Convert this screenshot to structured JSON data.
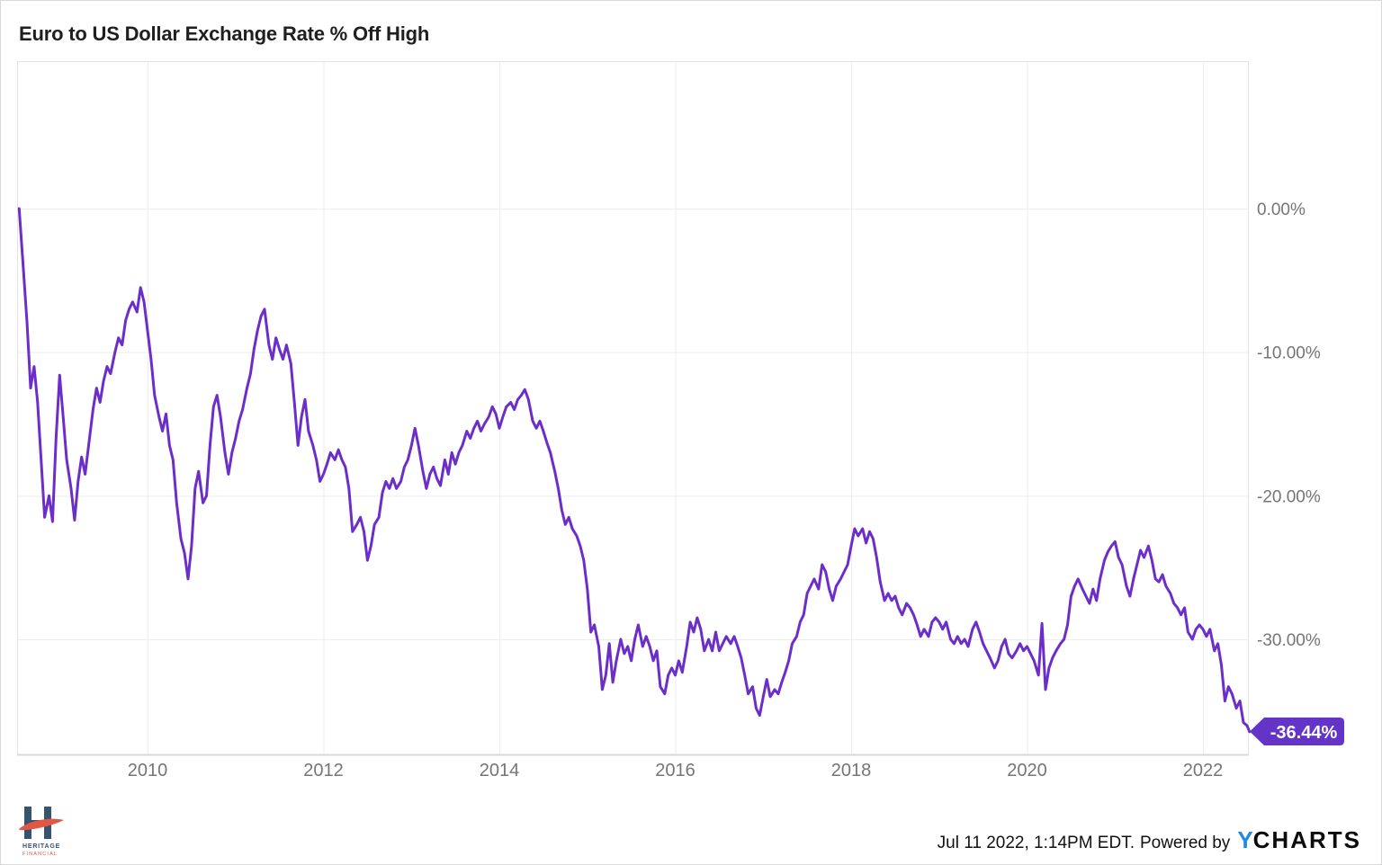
{
  "title": "Euro to US Dollar Exchange Rate % Off High",
  "badge": {
    "label": "-36.44%"
  },
  "footer": {
    "timestamp": "Jul 11 2022, 1:14PM EDT.",
    "powered_by": "Powered by",
    "ycharts_y": "Y",
    "ycharts_rest": "CHARTS"
  },
  "logo": {
    "line1": "HERITAGE",
    "line2": "FINANCIAL"
  },
  "colors": {
    "line": "#6C2EC8",
    "badge": "#6434C8",
    "grid": "#EDEDED",
    "plot_border": "#E3E3E3",
    "axis_line": "#D8D8D8",
    "axis_text": "#757575",
    "title_text": "#1F1F1F",
    "ycharts_blue": "#1E8AE8",
    "logo_navy": "#36536F",
    "logo_red": "#E25744"
  },
  "chart_data": {
    "type": "line",
    "title": "Euro to US Dollar Exchange Rate % Off High",
    "series_name": "Euro to US Dollar Exchange Rate % Off High",
    "xlabel": "",
    "ylabel": "",
    "y_axis_side": "right",
    "grid": true,
    "legend": "none",
    "x_range": [
      2008.52,
      2022.55
    ],
    "y_range": [
      -38.5,
      10.3
    ],
    "x_ticks": [
      2010,
      2012,
      2014,
      2016,
      2018,
      2020,
      2022
    ],
    "y_ticks": [
      {
        "label": "0.00%",
        "value": 0
      },
      {
        "label": "-10.00%",
        "value": -10
      },
      {
        "label": "-20.00%",
        "value": -20
      },
      {
        "label": "-30.00%",
        "value": -30
      }
    ],
    "last_value": -36.44,
    "last_value_label": "-36.44%",
    "points": [
      [
        2008.54,
        0
      ],
      [
        2008.58,
        -3.5
      ],
      [
        2008.63,
        -8
      ],
      [
        2008.67,
        -12.5
      ],
      [
        2008.71,
        -11
      ],
      [
        2008.75,
        -13.5
      ],
      [
        2008.79,
        -17.5
      ],
      [
        2008.83,
        -21.5
      ],
      [
        2008.88,
        -20
      ],
      [
        2008.92,
        -21.8
      ],
      [
        2008.96,
        -16
      ],
      [
        2009,
        -11.6
      ],
      [
        2009.04,
        -14.5
      ],
      [
        2009.08,
        -17.5
      ],
      [
        2009.13,
        -19.5
      ],
      [
        2009.17,
        -21.7
      ],
      [
        2009.21,
        -19
      ],
      [
        2009.25,
        -17.3
      ],
      [
        2009.29,
        -18.5
      ],
      [
        2009.33,
        -16.5
      ],
      [
        2009.38,
        -14
      ],
      [
        2009.42,
        -12.5
      ],
      [
        2009.46,
        -13.5
      ],
      [
        2009.5,
        -12
      ],
      [
        2009.54,
        -11
      ],
      [
        2009.58,
        -11.5
      ],
      [
        2009.63,
        -10
      ],
      [
        2009.67,
        -9
      ],
      [
        2009.71,
        -9.5
      ],
      [
        2009.75,
        -7.8
      ],
      [
        2009.79,
        -7
      ],
      [
        2009.83,
        -6.5
      ],
      [
        2009.88,
        -7.2
      ],
      [
        2009.92,
        -5.5
      ],
      [
        2009.96,
        -6.5
      ],
      [
        2010,
        -8.5
      ],
      [
        2010.04,
        -10.5
      ],
      [
        2010.08,
        -13
      ],
      [
        2010.13,
        -14.5
      ],
      [
        2010.17,
        -15.5
      ],
      [
        2010.21,
        -14.3
      ],
      [
        2010.25,
        -16.5
      ],
      [
        2010.29,
        -17.5
      ],
      [
        2010.33,
        -20.5
      ],
      [
        2010.38,
        -23
      ],
      [
        2010.42,
        -24
      ],
      [
        2010.46,
        -25.8
      ],
      [
        2010.5,
        -23.5
      ],
      [
        2010.54,
        -19.5
      ],
      [
        2010.58,
        -18.3
      ],
      [
        2010.63,
        -20.5
      ],
      [
        2010.67,
        -20
      ],
      [
        2010.71,
        -16.5
      ],
      [
        2010.75,
        -13.8
      ],
      [
        2010.79,
        -13
      ],
      [
        2010.83,
        -14.5
      ],
      [
        2010.88,
        -17
      ],
      [
        2010.92,
        -18.5
      ],
      [
        2010.96,
        -17
      ],
      [
        2011,
        -16
      ],
      [
        2011.04,
        -14.8
      ],
      [
        2011.08,
        -14
      ],
      [
        2011.13,
        -12.5
      ],
      [
        2011.17,
        -11.5
      ],
      [
        2011.21,
        -9.8
      ],
      [
        2011.25,
        -8.5
      ],
      [
        2011.29,
        -7.5
      ],
      [
        2011.33,
        -7
      ],
      [
        2011.38,
        -9.5
      ],
      [
        2011.42,
        -10.5
      ],
      [
        2011.46,
        -9
      ],
      [
        2011.5,
        -9.8
      ],
      [
        2011.54,
        -10.5
      ],
      [
        2011.58,
        -9.5
      ],
      [
        2011.63,
        -10.8
      ],
      [
        2011.67,
        -13.5
      ],
      [
        2011.71,
        -16.5
      ],
      [
        2011.75,
        -14.5
      ],
      [
        2011.79,
        -13.3
      ],
      [
        2011.83,
        -15.5
      ],
      [
        2011.88,
        -16.5
      ],
      [
        2011.92,
        -17.5
      ],
      [
        2011.96,
        -19
      ],
      [
        2012,
        -18.5
      ],
      [
        2012.04,
        -17.8
      ],
      [
        2012.08,
        -17
      ],
      [
        2012.13,
        -17.5
      ],
      [
        2012.17,
        -16.8
      ],
      [
        2012.21,
        -17.5
      ],
      [
        2012.25,
        -18
      ],
      [
        2012.29,
        -19.5
      ],
      [
        2012.33,
        -22.5
      ],
      [
        2012.38,
        -22
      ],
      [
        2012.42,
        -21.5
      ],
      [
        2012.46,
        -22.5
      ],
      [
        2012.5,
        -24.5
      ],
      [
        2012.54,
        -23.5
      ],
      [
        2012.58,
        -22
      ],
      [
        2012.63,
        -21.5
      ],
      [
        2012.67,
        -19.8
      ],
      [
        2012.71,
        -19
      ],
      [
        2012.75,
        -19.5
      ],
      [
        2012.79,
        -18.8
      ],
      [
        2012.83,
        -19.5
      ],
      [
        2012.88,
        -19
      ],
      [
        2012.92,
        -18
      ],
      [
        2012.96,
        -17.5
      ],
      [
        2013,
        -16.5
      ],
      [
        2013.04,
        -15.3
      ],
      [
        2013.08,
        -16.5
      ],
      [
        2013.13,
        -18.3
      ],
      [
        2013.17,
        -19.5
      ],
      [
        2013.21,
        -18.5
      ],
      [
        2013.25,
        -18
      ],
      [
        2013.29,
        -18.8
      ],
      [
        2013.33,
        -19.3
      ],
      [
        2013.38,
        -17.5
      ],
      [
        2013.42,
        -18.5
      ],
      [
        2013.46,
        -17
      ],
      [
        2013.5,
        -17.8
      ],
      [
        2013.54,
        -17
      ],
      [
        2013.58,
        -16.5
      ],
      [
        2013.63,
        -15.5
      ],
      [
        2013.67,
        -16
      ],
      [
        2013.71,
        -15.3
      ],
      [
        2013.75,
        -14.8
      ],
      [
        2013.79,
        -15.5
      ],
      [
        2013.83,
        -15
      ],
      [
        2013.88,
        -14.5
      ],
      [
        2013.92,
        -13.8
      ],
      [
        2013.96,
        -14.3
      ],
      [
        2014,
        -15.3
      ],
      [
        2014.04,
        -14.5
      ],
      [
        2014.08,
        -13.8
      ],
      [
        2014.13,
        -13.5
      ],
      [
        2014.17,
        -14
      ],
      [
        2014.21,
        -13.3
      ],
      [
        2014.25,
        -13
      ],
      [
        2014.29,
        -12.6
      ],
      [
        2014.33,
        -13.3
      ],
      [
        2014.38,
        -14.8
      ],
      [
        2014.42,
        -15.3
      ],
      [
        2014.46,
        -14.8
      ],
      [
        2014.5,
        -15.5
      ],
      [
        2014.54,
        -16.3
      ],
      [
        2014.58,
        -17
      ],
      [
        2014.63,
        -18.3
      ],
      [
        2014.67,
        -19.5
      ],
      [
        2014.71,
        -21
      ],
      [
        2014.75,
        -22
      ],
      [
        2014.79,
        -21.5
      ],
      [
        2014.83,
        -22.3
      ],
      [
        2014.88,
        -22.8
      ],
      [
        2014.92,
        -23.5
      ],
      [
        2014.96,
        -24.5
      ],
      [
        2015,
        -26.5
      ],
      [
        2015.04,
        -29.5
      ],
      [
        2015.08,
        -29
      ],
      [
        2015.13,
        -30.5
      ],
      [
        2015.17,
        -33.5
      ],
      [
        2015.21,
        -32.5
      ],
      [
        2015.25,
        -30.3
      ],
      [
        2015.29,
        -33
      ],
      [
        2015.33,
        -31.5
      ],
      [
        2015.38,
        -30
      ],
      [
        2015.42,
        -31
      ],
      [
        2015.46,
        -30.5
      ],
      [
        2015.5,
        -31.5
      ],
      [
        2015.54,
        -30
      ],
      [
        2015.58,
        -29
      ],
      [
        2015.63,
        -30.5
      ],
      [
        2015.67,
        -29.8
      ],
      [
        2015.71,
        -30.5
      ],
      [
        2015.75,
        -31.5
      ],
      [
        2015.79,
        -30.8
      ],
      [
        2015.83,
        -33.3
      ],
      [
        2015.88,
        -33.8
      ],
      [
        2015.92,
        -32.5
      ],
      [
        2015.96,
        -32
      ],
      [
        2016,
        -32.5
      ],
      [
        2016.04,
        -31.5
      ],
      [
        2016.08,
        -32.3
      ],
      [
        2016.13,
        -30.5
      ],
      [
        2016.17,
        -28.8
      ],
      [
        2016.21,
        -29.5
      ],
      [
        2016.25,
        -28.5
      ],
      [
        2016.29,
        -29.3
      ],
      [
        2016.33,
        -30.8
      ],
      [
        2016.38,
        -30
      ],
      [
        2016.42,
        -30.8
      ],
      [
        2016.46,
        -29.5
      ],
      [
        2016.5,
        -30.8
      ],
      [
        2016.54,
        -30.3
      ],
      [
        2016.58,
        -29.8
      ],
      [
        2016.63,
        -30.3
      ],
      [
        2016.67,
        -29.8
      ],
      [
        2016.71,
        -30.5
      ],
      [
        2016.75,
        -31.3
      ],
      [
        2016.79,
        -32.5
      ],
      [
        2016.83,
        -33.8
      ],
      [
        2016.88,
        -33.3
      ],
      [
        2016.92,
        -34.8
      ],
      [
        2016.96,
        -35.3
      ],
      [
        2017,
        -34
      ],
      [
        2017.04,
        -32.8
      ],
      [
        2017.08,
        -34
      ],
      [
        2017.13,
        -33.5
      ],
      [
        2017.17,
        -33.8
      ],
      [
        2017.21,
        -33
      ],
      [
        2017.25,
        -32.3
      ],
      [
        2017.29,
        -31.5
      ],
      [
        2017.33,
        -30.3
      ],
      [
        2017.38,
        -29.8
      ],
      [
        2017.42,
        -28.8
      ],
      [
        2017.46,
        -28.3
      ],
      [
        2017.5,
        -26.8
      ],
      [
        2017.54,
        -26.3
      ],
      [
        2017.58,
        -25.8
      ],
      [
        2017.63,
        -26.5
      ],
      [
        2017.67,
        -24.8
      ],
      [
        2017.71,
        -25.3
      ],
      [
        2017.75,
        -26.5
      ],
      [
        2017.79,
        -27.3
      ],
      [
        2017.83,
        -26.3
      ],
      [
        2017.88,
        -25.8
      ],
      [
        2017.92,
        -25.3
      ],
      [
        2017.96,
        -24.8
      ],
      [
        2018,
        -23.5
      ],
      [
        2018.04,
        -22.3
      ],
      [
        2018.08,
        -22.8
      ],
      [
        2018.13,
        -22.3
      ],
      [
        2018.17,
        -23.3
      ],
      [
        2018.21,
        -22.5
      ],
      [
        2018.25,
        -23
      ],
      [
        2018.29,
        -24.3
      ],
      [
        2018.33,
        -26
      ],
      [
        2018.38,
        -27.3
      ],
      [
        2018.42,
        -26.8
      ],
      [
        2018.46,
        -27.3
      ],
      [
        2018.5,
        -27
      ],
      [
        2018.54,
        -27.8
      ],
      [
        2018.58,
        -28.3
      ],
      [
        2018.63,
        -27.5
      ],
      [
        2018.67,
        -27.8
      ],
      [
        2018.71,
        -28.3
      ],
      [
        2018.75,
        -29
      ],
      [
        2018.79,
        -29.8
      ],
      [
        2018.83,
        -29.3
      ],
      [
        2018.88,
        -29.8
      ],
      [
        2018.92,
        -28.8
      ],
      [
        2018.96,
        -28.5
      ],
      [
        2019,
        -28.8
      ],
      [
        2019.04,
        -29.3
      ],
      [
        2019.08,
        -28.8
      ],
      [
        2019.13,
        -30
      ],
      [
        2019.17,
        -30.3
      ],
      [
        2019.21,
        -29.8
      ],
      [
        2019.25,
        -30.3
      ],
      [
        2019.29,
        -30
      ],
      [
        2019.33,
        -30.5
      ],
      [
        2019.38,
        -29.3
      ],
      [
        2019.42,
        -28.8
      ],
      [
        2019.46,
        -29.5
      ],
      [
        2019.5,
        -30.3
      ],
      [
        2019.54,
        -30.8
      ],
      [
        2019.58,
        -31.3
      ],
      [
        2019.63,
        -32
      ],
      [
        2019.67,
        -31.5
      ],
      [
        2019.71,
        -30.5
      ],
      [
        2019.75,
        -30
      ],
      [
        2019.79,
        -31
      ],
      [
        2019.83,
        -31.3
      ],
      [
        2019.88,
        -30.8
      ],
      [
        2019.92,
        -30.3
      ],
      [
        2019.96,
        -30.8
      ],
      [
        2020,
        -30.5
      ],
      [
        2020.04,
        -31
      ],
      [
        2020.08,
        -31.5
      ],
      [
        2020.13,
        -32.5
      ],
      [
        2020.17,
        -28.9
      ],
      [
        2020.21,
        -33.5
      ],
      [
        2020.25,
        -32
      ],
      [
        2020.29,
        -31.3
      ],
      [
        2020.33,
        -30.8
      ],
      [
        2020.38,
        -30.3
      ],
      [
        2020.42,
        -30
      ],
      [
        2020.46,
        -29
      ],
      [
        2020.5,
        -27
      ],
      [
        2020.54,
        -26.3
      ],
      [
        2020.58,
        -25.8
      ],
      [
        2020.63,
        -26.5
      ],
      [
        2020.67,
        -27
      ],
      [
        2020.71,
        -27.5
      ],
      [
        2020.75,
        -26.5
      ],
      [
        2020.79,
        -27.3
      ],
      [
        2020.83,
        -25.8
      ],
      [
        2020.88,
        -24.5
      ],
      [
        2020.92,
        -23.9
      ],
      [
        2020.96,
        -23.5
      ],
      [
        2021,
        -23.2
      ],
      [
        2021.04,
        -24.3
      ],
      [
        2021.08,
        -24.8
      ],
      [
        2021.13,
        -26.3
      ],
      [
        2021.17,
        -27
      ],
      [
        2021.21,
        -25.8
      ],
      [
        2021.25,
        -24.8
      ],
      [
        2021.29,
        -23.8
      ],
      [
        2021.33,
        -24.3
      ],
      [
        2021.38,
        -23.5
      ],
      [
        2021.42,
        -24.5
      ],
      [
        2021.46,
        -25.8
      ],
      [
        2021.5,
        -26
      ],
      [
        2021.54,
        -25.5
      ],
      [
        2021.58,
        -26.3
      ],
      [
        2021.63,
        -26.8
      ],
      [
        2021.67,
        -27.5
      ],
      [
        2021.71,
        -27.8
      ],
      [
        2021.75,
        -28.3
      ],
      [
        2021.79,
        -27.8
      ],
      [
        2021.83,
        -29.5
      ],
      [
        2021.88,
        -30
      ],
      [
        2021.92,
        -29.3
      ],
      [
        2021.96,
        -29
      ],
      [
        2022,
        -29.3
      ],
      [
        2022.04,
        -29.8
      ],
      [
        2022.08,
        -29.3
      ],
      [
        2022.13,
        -30.8
      ],
      [
        2022.17,
        -30.3
      ],
      [
        2022.21,
        -31.8
      ],
      [
        2022.25,
        -34.3
      ],
      [
        2022.29,
        -33.3
      ],
      [
        2022.33,
        -33.8
      ],
      [
        2022.38,
        -34.8
      ],
      [
        2022.42,
        -34.3
      ],
      [
        2022.46,
        -35.8
      ],
      [
        2022.5,
        -36
      ],
      [
        2022.53,
        -36.44
      ]
    ]
  }
}
